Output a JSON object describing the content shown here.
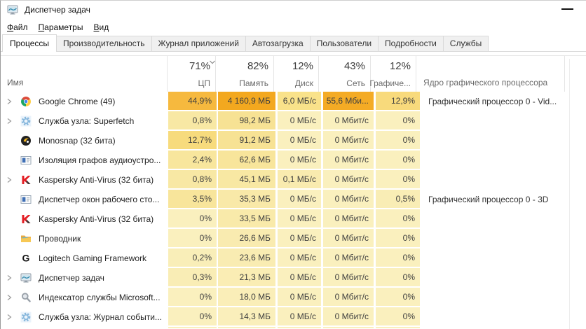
{
  "window": {
    "title": "Диспетчер задач",
    "app_icon": "taskmgr"
  },
  "menubar": [
    {
      "key": "file",
      "label": "Файл"
    },
    {
      "key": "options",
      "label": "Параметры"
    },
    {
      "key": "view",
      "label": "Вид"
    }
  ],
  "tabs": {
    "active_index": 0,
    "items": [
      {
        "key": "processes",
        "label": "Процессы"
      },
      {
        "key": "performance",
        "label": "Производительность"
      },
      {
        "key": "app-history",
        "label": "Журнал приложений"
      },
      {
        "key": "startup",
        "label": "Автозагрузка"
      },
      {
        "key": "users",
        "label": "Пользователи"
      },
      {
        "key": "details",
        "label": "Подробности"
      },
      {
        "key": "services",
        "label": "Службы"
      }
    ]
  },
  "header": {
    "name": "Имя",
    "columns": [
      {
        "key": "cpu",
        "pct": "71%",
        "label": "ЦП",
        "sorted": false
      },
      {
        "key": "mem",
        "pct": "82%",
        "label": "Память",
        "sorted": true
      },
      {
        "key": "disk",
        "pct": "12%",
        "label": "Диск",
        "sorted": false
      },
      {
        "key": "net",
        "pct": "43%",
        "label": "Сеть",
        "sorted": false
      },
      {
        "key": "gpu",
        "pct": "12%",
        "label": "Графиче...",
        "sorted": false
      }
    ],
    "engine_label": "Ядро графического процессора"
  },
  "colors": {
    "heat_zero": "#FAF0BE",
    "row_gap": "#FFFFFF"
  },
  "processes": [
    {
      "name": "Google Chrome (49)",
      "icon": "chrome",
      "expandable": true,
      "cpu": {
        "t": "44,9%",
        "c": "#F6B93E"
      },
      "mem": {
        "t": "4 160,9 МБ",
        "c": "#F3A81F"
      },
      "disk": {
        "t": "6,0 МБ/с",
        "c": "#F9E28A"
      },
      "net": {
        "t": "55,6 Мби...",
        "c": "#F4AB25"
      },
      "gpu": {
        "t": "12,9%",
        "c": "#F8DA7C"
      },
      "engine": "Графический процессор 0 - Vid..."
    },
    {
      "name": "Служба узла: Superfetch",
      "icon": "service-gear",
      "expandable": true,
      "cpu": {
        "t": "0,8%",
        "c": "#F8E8A4"
      },
      "mem": {
        "t": "98,2 МБ",
        "c": "#F7E294"
      },
      "disk": {
        "t": "0 МБ/с",
        "c": "#FAF0BE"
      },
      "net": {
        "t": "0 Мбит/с",
        "c": "#FAF0BE"
      },
      "gpu": {
        "t": "0%",
        "c": "#FAF0BE"
      },
      "engine": ""
    },
    {
      "name": "Monosnap (32 бита)",
      "icon": "monosnap",
      "expandable": false,
      "cpu": {
        "t": "12,7%",
        "c": "#F7DB7D"
      },
      "mem": {
        "t": "91,2 МБ",
        "c": "#F7E294"
      },
      "disk": {
        "t": "0 МБ/с",
        "c": "#FAF0BE"
      },
      "net": {
        "t": "0 Мбит/с",
        "c": "#FAF0BE"
      },
      "gpu": {
        "t": "0%",
        "c": "#FAF0BE"
      },
      "engine": ""
    },
    {
      "name": "Изоляция графов аудиоустро...",
      "icon": "app-window",
      "expandable": false,
      "cpu": {
        "t": "2,4%",
        "c": "#F8E69D"
      },
      "mem": {
        "t": "62,6 МБ",
        "c": "#F8E59B"
      },
      "disk": {
        "t": "0 МБ/с",
        "c": "#FAF0BE"
      },
      "net": {
        "t": "0 Мбит/с",
        "c": "#FAF0BE"
      },
      "gpu": {
        "t": "0%",
        "c": "#FAF0BE"
      },
      "engine": ""
    },
    {
      "name": "Kaspersky Anti-Virus (32 бита)",
      "icon": "kaspersky",
      "expandable": true,
      "cpu": {
        "t": "0,8%",
        "c": "#F8E8A4"
      },
      "mem": {
        "t": "45,1 МБ",
        "c": "#F8E8A3"
      },
      "disk": {
        "t": "0,1 МБ/с",
        "c": "#F9EBAF"
      },
      "net": {
        "t": "0 Мбит/с",
        "c": "#FAF0BE"
      },
      "gpu": {
        "t": "0%",
        "c": "#FAF0BE"
      },
      "engine": ""
    },
    {
      "name": "Диспетчер окон рабочего сто...",
      "icon": "app-window",
      "expandable": false,
      "cpu": {
        "t": "3,5%",
        "c": "#F8E59B"
      },
      "mem": {
        "t": "35,3 МБ",
        "c": "#F9E9A8"
      },
      "disk": {
        "t": "0 МБ/с",
        "c": "#FAF0BE"
      },
      "net": {
        "t": "0 Мбит/с",
        "c": "#FAF0BE"
      },
      "gpu": {
        "t": "0,5%",
        "c": "#F9EDB5"
      },
      "engine": "Графический процессор 0 - 3D"
    },
    {
      "name": "Kaspersky Anti-Virus (32 бита)",
      "icon": "kaspersky",
      "expandable": false,
      "cpu": {
        "t": "0%",
        "c": "#FAF0BE"
      },
      "mem": {
        "t": "33,5 МБ",
        "c": "#F9EAAA"
      },
      "disk": {
        "t": "0 МБ/с",
        "c": "#FAF0BE"
      },
      "net": {
        "t": "0 Мбит/с",
        "c": "#FAF0BE"
      },
      "gpu": {
        "t": "0%",
        "c": "#FAF0BE"
      },
      "engine": ""
    },
    {
      "name": "Проводник",
      "icon": "folder",
      "expandable": false,
      "cpu": {
        "t": "0%",
        "c": "#FAF0BE"
      },
      "mem": {
        "t": "26,6 МБ",
        "c": "#F9EBB0"
      },
      "disk": {
        "t": "0 МБ/с",
        "c": "#FAF0BE"
      },
      "net": {
        "t": "0 Мбит/с",
        "c": "#FAF0BE"
      },
      "gpu": {
        "t": "0%",
        "c": "#FAF0BE"
      },
      "engine": ""
    },
    {
      "name": "Logitech Gaming Framework",
      "icon": "logitech-g",
      "expandable": false,
      "cpu": {
        "t": "0,2%",
        "c": "#F9EEB8"
      },
      "mem": {
        "t": "23,6 МБ",
        "c": "#F9ECB2"
      },
      "disk": {
        "t": "0 МБ/с",
        "c": "#FAF0BE"
      },
      "net": {
        "t": "0 Мбит/с",
        "c": "#FAF0BE"
      },
      "gpu": {
        "t": "0%",
        "c": "#FAF0BE"
      },
      "engine": ""
    },
    {
      "name": "Диспетчер задач",
      "icon": "taskmgr",
      "expandable": true,
      "cpu": {
        "t": "0,3%",
        "c": "#F9EDB5"
      },
      "mem": {
        "t": "21,3 МБ",
        "c": "#FAEDB4"
      },
      "disk": {
        "t": "0 МБ/с",
        "c": "#FAF0BE"
      },
      "net": {
        "t": "0 Мбит/с",
        "c": "#FAF0BE"
      },
      "gpu": {
        "t": "0%",
        "c": "#FAF0BE"
      },
      "engine": ""
    },
    {
      "name": "Индексатор службы Microsoft...",
      "icon": "search-indexer",
      "expandable": true,
      "cpu": {
        "t": "0%",
        "c": "#FAF0BE"
      },
      "mem": {
        "t": "18,0 МБ",
        "c": "#FAEEB8"
      },
      "disk": {
        "t": "0 МБ/с",
        "c": "#FAF0BE"
      },
      "net": {
        "t": "0 Мбит/с",
        "c": "#FAF0BE"
      },
      "gpu": {
        "t": "0%",
        "c": "#FAF0BE"
      },
      "engine": ""
    },
    {
      "name": "Служба узла: Журнал событи...",
      "icon": "service-gear",
      "expandable": true,
      "cpu": {
        "t": "0%",
        "c": "#FAF0BE"
      },
      "mem": {
        "t": "14,3 МБ",
        "c": "#FAEFBB"
      },
      "disk": {
        "t": "0 МБ/с",
        "c": "#FAF0BE"
      },
      "net": {
        "t": "0 Мбит/с",
        "c": "#FAF0BE"
      },
      "gpu": {
        "t": "0%",
        "c": "#FAF0BE"
      },
      "engine": ""
    }
  ],
  "partial_next_row": true
}
